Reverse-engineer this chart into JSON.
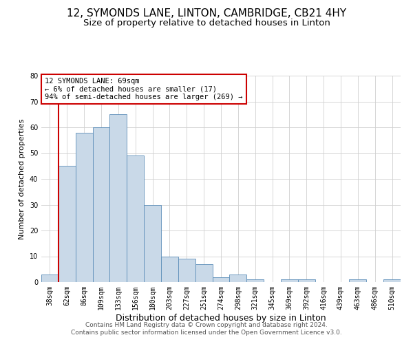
{
  "title_line1": "12, SYMONDS LANE, LINTON, CAMBRIDGE, CB21 4HY",
  "title_line2": "Size of property relative to detached houses in Linton",
  "xlabel": "Distribution of detached houses by size in Linton",
  "ylabel": "Number of detached properties",
  "bar_labels": [
    "38sqm",
    "62sqm",
    "86sqm",
    "109sqm",
    "133sqm",
    "156sqm",
    "180sqm",
    "203sqm",
    "227sqm",
    "251sqm",
    "274sqm",
    "298sqm",
    "321sqm",
    "345sqm",
    "369sqm",
    "392sqm",
    "416sqm",
    "439sqm",
    "463sqm",
    "486sqm",
    "510sqm"
  ],
  "bar_values": [
    3,
    45,
    58,
    60,
    65,
    49,
    30,
    10,
    9,
    7,
    2,
    3,
    1,
    0,
    1,
    1,
    0,
    0,
    1,
    0,
    1
  ],
  "bar_color": "#c9d9e8",
  "bar_edge_color": "#5b8db8",
  "grid_color": "#d0d0d0",
  "background_color": "#ffffff",
  "annotation_text": "12 SYMONDS LANE: 69sqm\n← 6% of detached houses are smaller (17)\n94% of semi-detached houses are larger (269) →",
  "annotation_box_color": "#ffffff",
  "annotation_box_edge": "#cc0000",
  "vline_color": "#cc0000",
  "vline_x": 1.5,
  "ylim": [
    0,
    80
  ],
  "yticks": [
    0,
    10,
    20,
    30,
    40,
    50,
    60,
    70,
    80
  ],
  "footer_line1": "Contains HM Land Registry data © Crown copyright and database right 2024.",
  "footer_line2": "Contains public sector information licensed under the Open Government Licence v3.0.",
  "title1_fontsize": 11,
  "title2_fontsize": 9.5,
  "xlabel_fontsize": 9,
  "ylabel_fontsize": 8,
  "tick_fontsize": 7,
  "annotation_fontsize": 7.5,
  "footer_fontsize": 6.5
}
